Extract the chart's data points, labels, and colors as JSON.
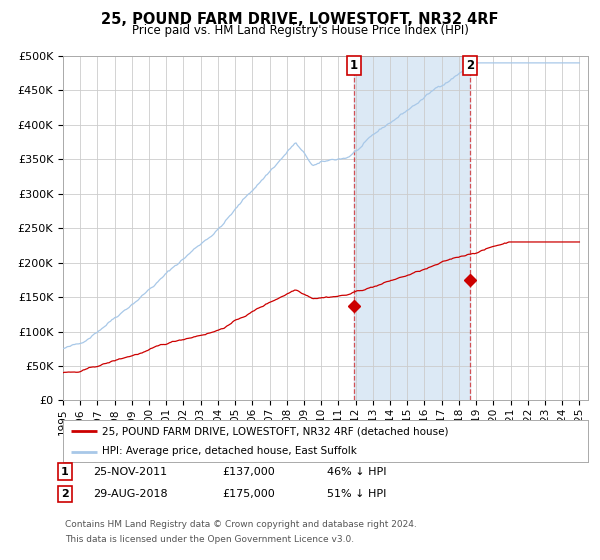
{
  "title": "25, POUND FARM DRIVE, LOWESTOFT, NR32 4RF",
  "subtitle": "Price paid vs. HM Land Registry's House Price Index (HPI)",
  "ylim": [
    0,
    500000
  ],
  "yticks": [
    0,
    50000,
    100000,
    150000,
    200000,
    250000,
    300000,
    350000,
    400000,
    450000,
    500000
  ],
  "ytick_labels": [
    "£0",
    "£50K",
    "£100K",
    "£150K",
    "£200K",
    "£250K",
    "£300K",
    "£350K",
    "£400K",
    "£450K",
    "£500K"
  ],
  "x_start_year": 1995,
  "x_end_year": 2025,
  "background_color": "#ffffff",
  "plot_bg_color": "#ffffff",
  "grid_color": "#cccccc",
  "hpi_line_color": "#a8c8e8",
  "price_line_color": "#cc0000",
  "highlight_fill_color": "#dce9f5",
  "sale1_price": 137000,
  "sale1_year": 2011.9,
  "sale2_price": 175000,
  "sale2_year": 2018.66,
  "legend_label1": "25, POUND FARM DRIVE, LOWESTOFT, NR32 4RF (detached house)",
  "legend_label2": "HPI: Average price, detached house, East Suffolk",
  "footnote_line1": "Contains HM Land Registry data © Crown copyright and database right 2024.",
  "footnote_line2": "This data is licensed under the Open Government Licence v3.0.",
  "table_row1": [
    "1",
    "25-NOV-2011",
    "£137,000",
    "46% ↓ HPI"
  ],
  "table_row2": [
    "2",
    "29-AUG-2018",
    "£175,000",
    "51% ↓ HPI"
  ]
}
